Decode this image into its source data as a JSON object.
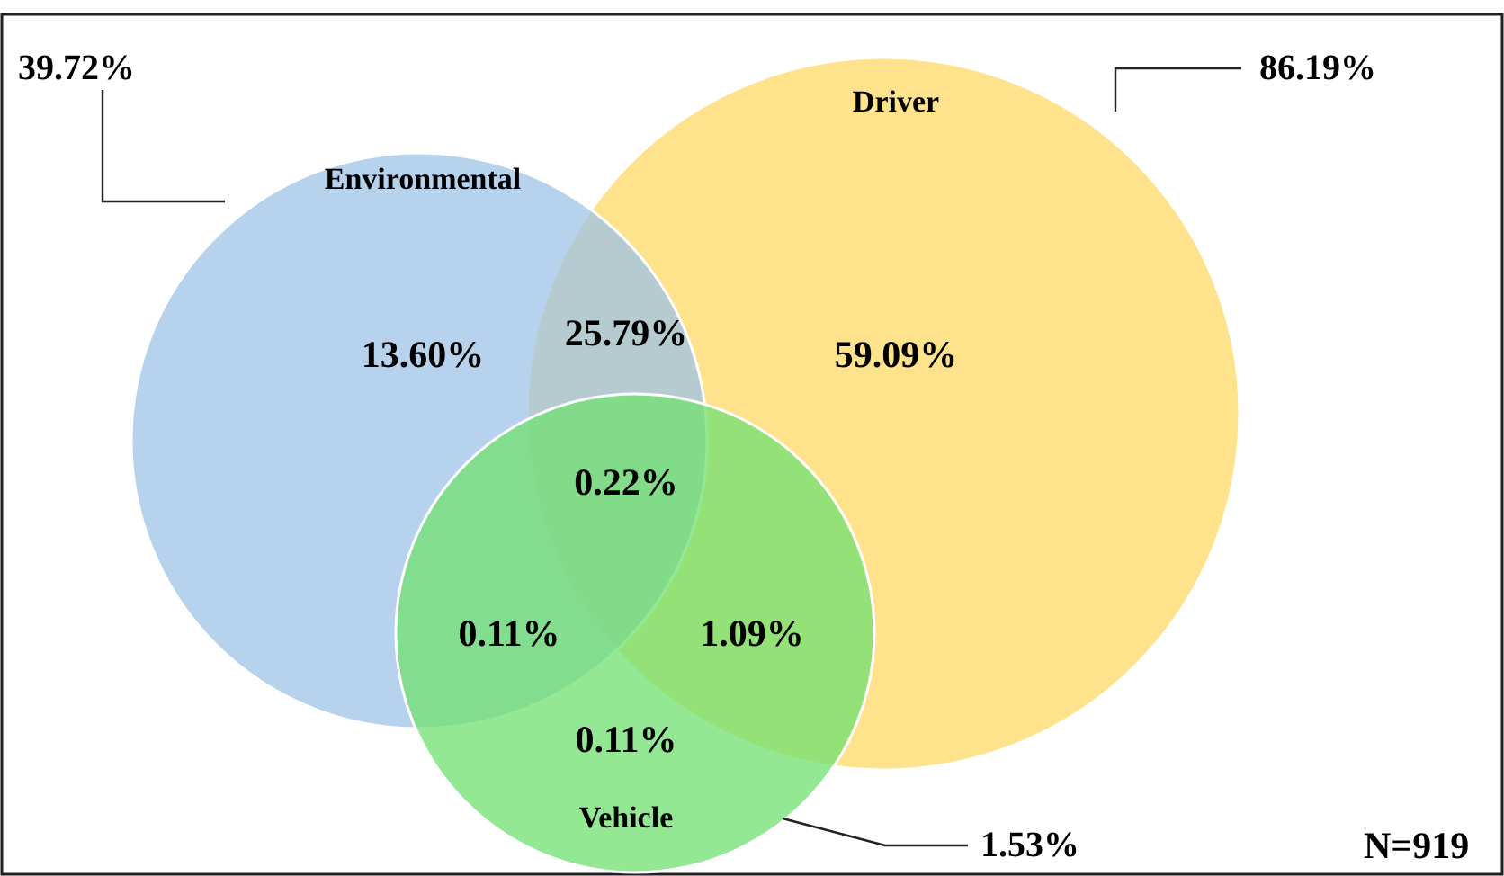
{
  "chart_data": {
    "type": "other",
    "categories": [
      "Environmental",
      "Driver",
      "Vehicle"
    ],
    "values": [
      39.72,
      86.19,
      1.53
    ],
    "value_labels": [
      "39.72%",
      "86.19%",
      "1.53%"
    ],
    "colors": [
      "#9dc3e6",
      "#ffd966",
      "#70e070"
    ],
    "annotations": [
      "13.60%",
      "25.79%",
      "59.09%",
      "0.22%",
      "0.11%",
      "1.09%",
      "0.11%",
      "N=919"
    ]
  }
}
